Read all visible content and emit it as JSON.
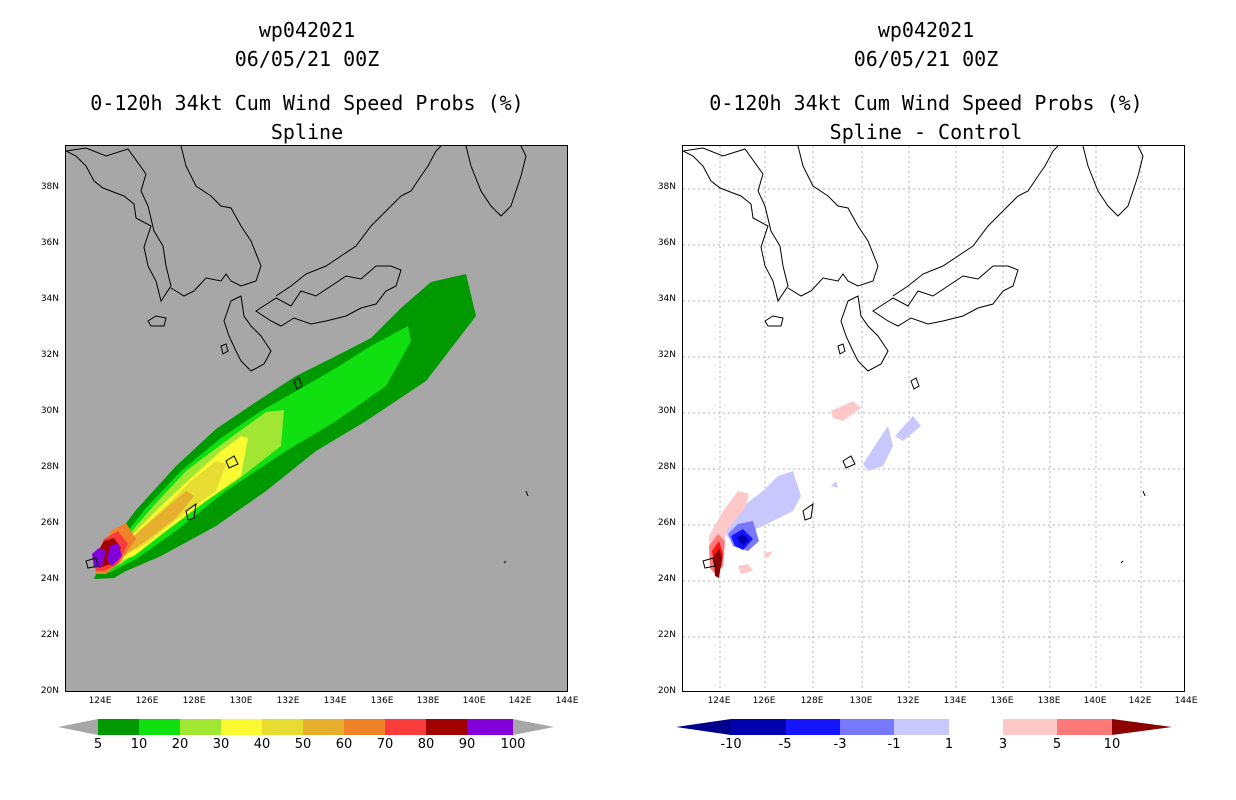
{
  "left_panel": {
    "title_lines": [
      "wp042021",
      "06/05/21 00Z",
      "0-120h 34kt Cum Wind Speed Probs (%)",
      "Spline"
    ]
  },
  "right_panel": {
    "title_lines": [
      "wp042021",
      "06/05/21 00Z",
      "0-120h 34kt Cum Wind Speed Probs (%)",
      "Spline - Control"
    ]
  },
  "axes": {
    "lat_labels": [
      "20N",
      "22N",
      "24N",
      "26N",
      "28N",
      "30N",
      "32N",
      "34N",
      "36N",
      "38N"
    ],
    "lon_labels": [
      "124E",
      "126E",
      "128E",
      "130E",
      "132E",
      "134E",
      "136E",
      "138E",
      "140E",
      "142E",
      "144E"
    ]
  },
  "colorbar_left": {
    "labels": [
      "5",
      "10",
      "20",
      "30",
      "40",
      "50",
      "60",
      "70",
      "80",
      "90",
      "100"
    ],
    "colors": [
      "#009a00",
      "#10e010",
      "#a0e632",
      "#fafa32",
      "#e6dc32",
      "#e6af2d",
      "#f08228",
      "#fa3c3c",
      "#a00000",
      "#8200dc"
    ],
    "end_color": "#a7a7a7"
  },
  "colorbar_right": {
    "labels": [
      "-10",
      "-5",
      "-3",
      "-1",
      "1",
      "3",
      "5",
      "10"
    ],
    "colors": [
      "#0000b0",
      "#1414ff",
      "#7878ff",
      "#c8c8ff",
      "#ffffff",
      "#ffc8c8",
      "#ff7878",
      "#ff1414"
    ],
    "low_end_color": "#00008c",
    "high_end_color": "#8c0000"
  },
  "colors": {
    "panel_left_bg": "#a7a7a7",
    "panel_right_bg": "#ffffff",
    "coast": "#000000"
  }
}
